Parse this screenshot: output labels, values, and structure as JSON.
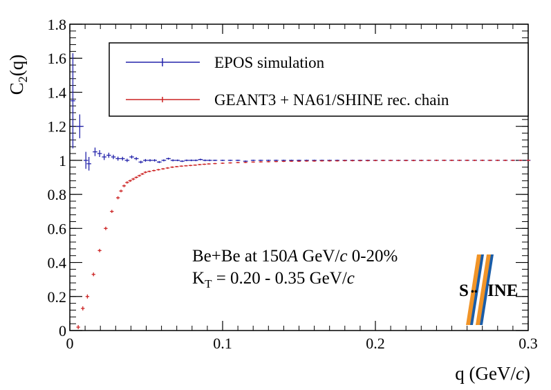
{
  "chart_data": {
    "type": "scatter",
    "xlabel": "q (GeV/c)",
    "ylabel": "C2(q)",
    "xlim": [
      0,
      0.3
    ],
    "ylim": [
      0,
      1.8
    ],
    "grid": false,
    "legend_position": "top-right",
    "x_ticks": [
      {
        "value": 0,
        "label": "0"
      },
      {
        "value": 0.1,
        "label": "0.1"
      },
      {
        "value": 0.2,
        "label": "0.2"
      },
      {
        "value": 0.3,
        "label": "0.3"
      }
    ],
    "y_ticks": [
      {
        "value": 0,
        "label": "0"
      },
      {
        "value": 0.2,
        "label": "0.2"
      },
      {
        "value": 0.4,
        "label": "0.4"
      },
      {
        "value": 0.6,
        "label": "0.6"
      },
      {
        "value": 0.8,
        "label": "0.8"
      },
      {
        "value": 1.0,
        "label": "1"
      },
      {
        "value": 1.2,
        "label": "1.2"
      },
      {
        "value": 1.4,
        "label": "1.4"
      },
      {
        "value": 1.6,
        "label": "1.6"
      },
      {
        "value": 1.8,
        "label": "1.8"
      }
    ],
    "series": [
      {
        "name": "EPOS simulation",
        "color": "#2222aa",
        "x": [
          0.002,
          0.0065,
          0.0105,
          0.0125,
          0.0165,
          0.0195,
          0.0225,
          0.0255,
          0.0285,
          0.0315,
          0.0345,
          0.0375,
          0.0405,
          0.0435,
          0.0465,
          0.0495,
          0.0525,
          0.0555,
          0.0585,
          0.0615,
          0.0645,
          0.0675,
          0.0705,
          0.0735,
          0.0765,
          0.0795,
          0.0825,
          0.0855,
          0.0885,
          0.0915,
          0.095,
          0.1,
          0.105,
          0.11,
          0.115,
          0.12,
          0.125,
          0.13,
          0.135,
          0.14,
          0.145,
          0.15,
          0.155,
          0.16,
          0.165,
          0.17,
          0.175,
          0.18,
          0.185,
          0.19,
          0.195,
          0.2,
          0.205,
          0.21,
          0.215,
          0.22,
          0.225,
          0.23,
          0.235,
          0.24,
          0.245,
          0.25,
          0.255,
          0.26,
          0.265,
          0.27,
          0.275,
          0.28,
          0.285,
          0.29,
          0.295,
          0.3
        ],
        "y": [
          1.35,
          1.2,
          1.0,
          0.98,
          1.05,
          1.04,
          1.02,
          1.03,
          1.02,
          1.01,
          1.01,
          1.0,
          1.02,
          1.01,
          0.99,
          1.0,
          1.0,
          1.0,
          0.99,
          1.0,
          1.01,
          1.0,
          1.0,
          0.995,
          1.0,
          1.0,
          1.0,
          1.005,
          1.0,
          1.0,
          1.0,
          1.0,
          1.0,
          1.0,
          0.995,
          1.0,
          1.0,
          1.0,
          1.0,
          1.0,
          1.0,
          1.0,
          1.0,
          1.0,
          1.0,
          1.0,
          1.0,
          1.0,
          1.0,
          1.0,
          1.0,
          1.0,
          1.0,
          1.0,
          1.0,
          1.0,
          1.0,
          1.0,
          1.0,
          1.0,
          1.0,
          1.0,
          1.0,
          1.0,
          1.0,
          1.0,
          1.0,
          1.0,
          1.0,
          1.0,
          1.0,
          1.0
        ],
        "yerr": [
          0.28,
          0.07,
          0.05,
          0.04,
          0.025,
          0.02,
          0.018,
          0.015,
          0.013,
          0.012,
          0.011,
          0.01,
          0.01,
          0.009,
          0.008,
          0.008,
          0.007,
          0.007,
          0.006,
          0.006,
          0.006,
          0.006,
          0.005,
          0.005,
          0.005,
          0.005,
          0.005,
          0.005,
          0.005,
          0.005,
          0.004,
          0.004,
          0.004,
          0.004,
          0.004,
          0.004,
          0.004,
          0.004,
          0.004,
          0.004,
          0.004,
          0.004,
          0.004,
          0.004,
          0.004,
          0.004,
          0.004,
          0.004,
          0.004,
          0.004,
          0.004,
          0.004,
          0.004,
          0.004,
          0.004,
          0.004,
          0.004,
          0.004,
          0.004,
          0.004,
          0.004,
          0.004,
          0.004,
          0.004,
          0.004,
          0.004,
          0.004,
          0.004,
          0.004,
          0.004,
          0.004,
          0.004
        ],
        "xerr": [
          0.0015,
          0.0025,
          0.0015,
          0.0015,
          0.0015,
          0.0015,
          0.0015,
          0.0015,
          0.0015,
          0.0015,
          0.0015,
          0.0015,
          0.0015,
          0.0015,
          0.0015,
          0.0015,
          0.0015,
          0.0015,
          0.0015,
          0.0015,
          0.0015,
          0.0015,
          0.0015,
          0.0015,
          0.0015,
          0.0015,
          0.0015,
          0.0015,
          0.0015,
          0.0015,
          0.0015,
          0.0015,
          0.0015,
          0.0015,
          0.0015,
          0.0015,
          0.0015,
          0.0015,
          0.0015,
          0.0015,
          0.0015,
          0.0015,
          0.0015,
          0.0015,
          0.0015,
          0.0015,
          0.0015,
          0.0015,
          0.0015,
          0.0015,
          0.0015,
          0.0015,
          0.0015,
          0.0015,
          0.0015,
          0.0015,
          0.0015,
          0.0015,
          0.0015,
          0.0015,
          0.0015,
          0.0015,
          0.0015,
          0.0015,
          0.0015,
          0.0015,
          0.0015,
          0.0015,
          0.0015,
          0.0015,
          0.0015,
          0.0015
        ]
      },
      {
        "name": "GEANT3 + NA61/SHINE rec. chain",
        "color": "#cc2222",
        "x": [
          0.0055,
          0.0085,
          0.0115,
          0.0155,
          0.0195,
          0.0235,
          0.0275,
          0.0315,
          0.0335,
          0.0355,
          0.0375,
          0.0395,
          0.0415,
          0.0435,
          0.0455,
          0.0475,
          0.0495,
          0.052,
          0.055,
          0.058,
          0.061,
          0.064,
          0.067,
          0.07,
          0.073,
          0.076,
          0.079,
          0.082,
          0.085,
          0.088,
          0.091,
          0.095,
          0.1,
          0.105,
          0.11,
          0.115,
          0.12,
          0.125,
          0.13,
          0.135,
          0.14,
          0.145,
          0.15,
          0.155,
          0.16,
          0.165,
          0.17,
          0.175,
          0.18,
          0.185,
          0.19,
          0.195,
          0.2,
          0.205,
          0.21,
          0.215,
          0.22,
          0.225,
          0.23,
          0.235,
          0.24,
          0.245,
          0.25,
          0.255,
          0.26,
          0.265,
          0.27,
          0.275,
          0.28,
          0.285,
          0.29,
          0.295,
          0.3
        ],
        "y": [
          0.02,
          0.13,
          0.2,
          0.33,
          0.47,
          0.6,
          0.7,
          0.78,
          0.82,
          0.85,
          0.87,
          0.88,
          0.89,
          0.9,
          0.91,
          0.92,
          0.93,
          0.935,
          0.94,
          0.945,
          0.95,
          0.955,
          0.96,
          0.963,
          0.966,
          0.968,
          0.97,
          0.972,
          0.975,
          0.977,
          0.979,
          0.981,
          0.983,
          0.985,
          0.987,
          0.988,
          0.99,
          0.991,
          0.992,
          0.993,
          0.994,
          0.995,
          0.995,
          0.996,
          0.996,
          0.997,
          0.997,
          0.997,
          0.998,
          0.998,
          0.998,
          0.998,
          0.999,
          0.999,
          0.999,
          0.999,
          0.999,
          0.999,
          0.999,
          1.0,
          1.0,
          1.0,
          1.0,
          1.0,
          1.0,
          1.0,
          1.0,
          1.0,
          1.0,
          1.0,
          1.0,
          1.0,
          1.0
        ],
        "yerr": [
          0.012,
          0.012,
          0.012,
          0.011,
          0.01,
          0.01,
          0.009,
          0.009,
          0.008,
          0.008,
          0.007,
          0.007,
          0.007,
          0.006,
          0.006,
          0.006,
          0.006,
          0.005,
          0.005,
          0.005,
          0.005,
          0.005,
          0.005,
          0.004,
          0.004,
          0.004,
          0.004,
          0.004,
          0.004,
          0.004,
          0.004,
          0.004,
          0.004,
          0.004,
          0.004,
          0.004,
          0.004,
          0.004,
          0.004,
          0.004,
          0.004,
          0.004,
          0.004,
          0.004,
          0.004,
          0.004,
          0.004,
          0.004,
          0.004,
          0.004,
          0.004,
          0.004,
          0.004,
          0.004,
          0.004,
          0.004,
          0.004,
          0.004,
          0.004,
          0.004,
          0.004,
          0.004,
          0.004,
          0.004,
          0.004,
          0.004,
          0.004,
          0.004,
          0.004,
          0.004,
          0.004,
          0.004,
          0.004
        ],
        "xerr": [
          0.0012,
          0.0012,
          0.0012,
          0.0012,
          0.0012,
          0.0012,
          0.0012,
          0.0012,
          0.0012,
          0.0012,
          0.0012,
          0.0012,
          0.0012,
          0.0012,
          0.0012,
          0.0012,
          0.0012,
          0.0012,
          0.0012,
          0.0012,
          0.0012,
          0.0012,
          0.0012,
          0.0012,
          0.0012,
          0.0012,
          0.0012,
          0.0012,
          0.0012,
          0.0012,
          0.0012,
          0.0012,
          0.0012,
          0.0012,
          0.0012,
          0.0012,
          0.0012,
          0.0012,
          0.0012,
          0.0012,
          0.0012,
          0.0012,
          0.0012,
          0.0012,
          0.0012,
          0.0012,
          0.0012,
          0.0012,
          0.0012,
          0.0012,
          0.0012,
          0.0012,
          0.0012,
          0.0012,
          0.0012,
          0.0012,
          0.0012,
          0.0012,
          0.0012,
          0.0012,
          0.0012,
          0.0012,
          0.0012,
          0.0012,
          0.0012,
          0.0012,
          0.0012,
          0.0012,
          0.0012,
          0.0012,
          0.0012,
          0.0012,
          0.0012
        ]
      }
    ],
    "annotations": [
      "Be+Be at 150A GeV/c 0-20%",
      "KT = 0.20 - 0.35 GeV/c"
    ]
  },
  "labels": {
    "ylabel_main": "C",
    "ylabel_sub": "2",
    "ylabel_tail": "(q)",
    "xlabel_main": "q (GeV/",
    "xlabel_italic": "c",
    "xlabel_tail": ")",
    "legend_1": "EPOS simulation",
    "legend_2": "GEANT3 + NA61/SHINE rec. chain",
    "annot1_pre": "Be+Be at 150",
    "annot1_italic_a": "A",
    "annot1_mid": " GeV/",
    "annot1_italic_c": "c",
    "annot1_post": " 0-20%",
    "annot2_pre": "K",
    "annot2_sub": "T",
    "annot2_mid": " = 0.20 - 0.35 GeV/",
    "annot2_italic_c": "c"
  },
  "logo": {
    "text_s": "S",
    "text_dots": "••",
    "text_ine": "INE",
    "blue": "#1a5da8",
    "orange": "#f09428"
  }
}
